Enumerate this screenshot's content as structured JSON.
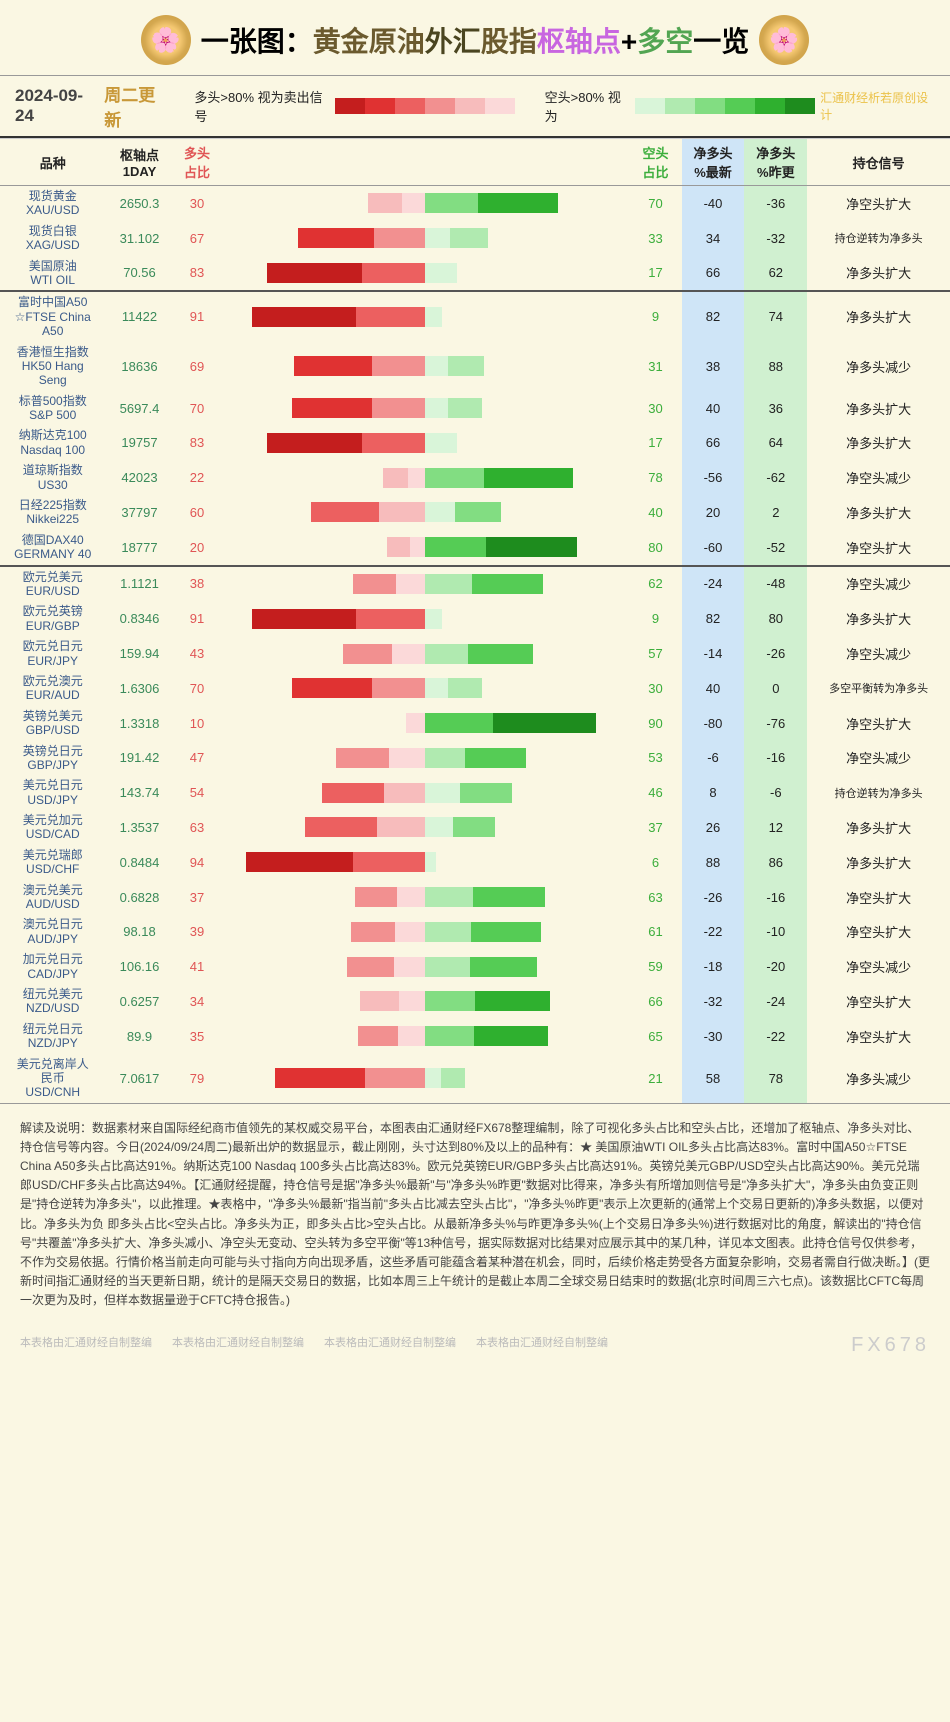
{
  "title_parts": [
    "一张图：",
    "黄金原油",
    "外汇",
    "股指",
    "枢轴点",
    "+",
    "多空",
    "一览"
  ],
  "date": "2024-09-24",
  "day": "周二更新",
  "legend_long": "多头>80% 视为卖出信号",
  "legend_short": "空头>80% 视为",
  "watermark_top": "汇通财经析若原创设计",
  "columns": {
    "name": "品种",
    "pivot": "枢轴点\n1DAY",
    "long": "多头\n占比",
    "short": "空头\n占比",
    "net1": "净多头\n%最新",
    "net2": "净多头\n%昨更",
    "sig": "持仓信号"
  },
  "red_gradient": [
    "#c41e1e",
    "#e03232",
    "#ec6060",
    "#f29090",
    "#f7bcbc",
    "#fbd9d9"
  ],
  "green_gradient": [
    "#d9f5d9",
    "#b0eab0",
    "#82dd82",
    "#55cc55",
    "#2fb02f",
    "#1e8c1e"
  ],
  "groups": [
    {
      "rows": [
        {
          "name": "现货黄金\nXAU/USD",
          "pivot": "2650.3",
          "long": 30,
          "short": 70,
          "net1": -40,
          "net2": -36,
          "sig": "净空头扩大"
        },
        {
          "name": "现货白银\nXAG/USD",
          "pivot": "31.102",
          "long": 67,
          "short": 33,
          "net1": 34,
          "net2": -32,
          "sig": "持仓逆转为净多头"
        },
        {
          "name": "美国原油\nWTI OIL",
          "pivot": "70.56",
          "long": 83,
          "short": 17,
          "net1": 66,
          "net2": 62,
          "sig": "净多头扩大"
        }
      ]
    },
    {
      "rows": [
        {
          "name": "富时中国A50\n☆FTSE China\nA50",
          "pivot": "11422",
          "long": 91,
          "short": 9,
          "net1": 82,
          "net2": 74,
          "sig": "净多头扩大"
        },
        {
          "name": "香港恒生指数\nHK50 Hang\nSeng",
          "pivot": "18636",
          "long": 69,
          "short": 31,
          "net1": 38,
          "net2": 88,
          "sig": "净多头减少"
        },
        {
          "name": "标普500指数\nS&P 500",
          "pivot": "5697.4",
          "long": 70,
          "short": 30,
          "net1": 40,
          "net2": 36,
          "sig": "净多头扩大"
        },
        {
          "name": "纳斯达克100\nNasdaq 100",
          "pivot": "19757",
          "long": 83,
          "short": 17,
          "net1": 66,
          "net2": 64,
          "sig": "净多头扩大"
        },
        {
          "name": "道琼斯指数\nUS30",
          "pivot": "42023",
          "long": 22,
          "short": 78,
          "net1": -56,
          "net2": -62,
          "sig": "净空头减少"
        },
        {
          "name": "日经225指数\nNikkei225",
          "pivot": "37797",
          "long": 60,
          "short": 40,
          "net1": 20,
          "net2": 2,
          "sig": "净多头扩大"
        },
        {
          "name": "德国DAX40\nGERMANY 40",
          "pivot": "18777",
          "long": 20,
          "short": 80,
          "net1": -60,
          "net2": -52,
          "sig": "净空头扩大"
        }
      ]
    },
    {
      "rows": [
        {
          "name": "欧元兑美元\nEUR/USD",
          "pivot": "1.1121",
          "long": 38,
          "short": 62,
          "net1": -24,
          "net2": -48,
          "sig": "净空头减少"
        },
        {
          "name": "欧元兑英镑\nEUR/GBP",
          "pivot": "0.8346",
          "long": 91,
          "short": 9,
          "net1": 82,
          "net2": 80,
          "sig": "净多头扩大"
        },
        {
          "name": "欧元兑日元\nEUR/JPY",
          "pivot": "159.94",
          "long": 43,
          "short": 57,
          "net1": -14,
          "net2": -26,
          "sig": "净空头减少"
        },
        {
          "name": "欧元兑澳元\nEUR/AUD",
          "pivot": "1.6306",
          "long": 70,
          "short": 30,
          "net1": 40,
          "net2": 0,
          "sig": "多空平衡转为净多头"
        },
        {
          "name": "英镑兑美元\nGBP/USD",
          "pivot": "1.3318",
          "long": 10,
          "short": 90,
          "net1": -80,
          "net2": -76,
          "sig": "净空头扩大"
        },
        {
          "name": "英镑兑日元\nGBP/JPY",
          "pivot": "191.42",
          "long": 47,
          "short": 53,
          "net1": -6,
          "net2": -16,
          "sig": "净空头减少"
        },
        {
          "name": "美元兑日元\nUSD/JPY",
          "pivot": "143.74",
          "long": 54,
          "short": 46,
          "net1": 8,
          "net2": -6,
          "sig": "持仓逆转为净多头"
        },
        {
          "name": "美元兑加元\nUSD/CAD",
          "pivot": "1.3537",
          "long": 63,
          "short": 37,
          "net1": 26,
          "net2": 12,
          "sig": "净多头扩大"
        },
        {
          "name": "美元兑瑞郎\nUSD/CHF",
          "pivot": "0.8484",
          "long": 94,
          "short": 6,
          "net1": 88,
          "net2": 86,
          "sig": "净多头扩大"
        },
        {
          "name": "澳元兑美元\nAUD/USD",
          "pivot": "0.6828",
          "long": 37,
          "short": 63,
          "net1": -26,
          "net2": -16,
          "sig": "净空头扩大"
        },
        {
          "name": "澳元兑日元\nAUD/JPY",
          "pivot": "98.18",
          "long": 39,
          "short": 61,
          "net1": -22,
          "net2": -10,
          "sig": "净空头扩大"
        },
        {
          "name": "加元兑日元\nCAD/JPY",
          "pivot": "106.16",
          "long": 41,
          "short": 59,
          "net1": -18,
          "net2": -20,
          "sig": "净空头减少"
        },
        {
          "name": "纽元兑美元\nNZD/USD",
          "pivot": "0.6257",
          "long": 34,
          "short": 66,
          "net1": -32,
          "net2": -24,
          "sig": "净空头扩大"
        },
        {
          "name": "纽元兑日元\nNZD/JPY",
          "pivot": "89.9",
          "long": 35,
          "short": 65,
          "net1": -30,
          "net2": -22,
          "sig": "净空头扩大"
        },
        {
          "name": "美元兑离岸人\n民币\nUSD/CNH",
          "pivot": "7.0617",
          "long": 79,
          "short": 21,
          "net1": 58,
          "net2": 78,
          "sig": "净多头减少"
        }
      ]
    }
  ],
  "footer": "解读及说明：数据素材来自国际经纪商市值领先的某权威交易平台，本图表由汇通财经FX678整理编制，除了可视化多头占比和空头占比，还增加了枢轴点、净多头对比、持仓信号等内容。今日(2024/09/24周二)最新出炉的数据显示，截止刚刚，头寸达到80%及以上的品种有：★ 美国原油WTI OIL多头占比高达83%。富时中国A50☆FTSE China A50多头占比高达91%。纳斯达克100 Nasdaq 100多头占比高达83%。欧元兑英镑EUR/GBP多头占比高达91%。英镑兑美元GBP/USD空头占比高达90%。美元兑瑞郎USD/CHF多头占比高达94%。【汇通财经提醒，持仓信号是据\"净多头%最新\"与\"净多头%昨更\"数据对比得来，净多头有所增加则信号是\"净多头扩大\"，净多头由负变正则是\"持仓逆转为净多头\"，以此推理。★表格中，\"净多头%最新\"指当前\"多头占比减去空头占比\"，\"净多头%昨更\"表示上次更新的(通常上个交易日更新的)净多头数据，以便对比。净多头为负 即多头占比<空头占比。净多头为正，即多头占比>空头占比。从最新净多头%与昨更净多头%(上个交易日净多头%)进行数据对比的角度，解读出的\"持仓信号\"共覆盖\"净多头扩大、净多头减小、净空头无变动、空头转为多空平衡\"等13种信号，据实际数据对比结果对应展示其中的某几种，详见本文图表。此持仓信号仅供参考，不作为交易依据。行情价格当前走向可能与头寸指向方向出现矛盾，这些矛盾可能蕴含着某种潜在机会，同时，后续价格走势受各方面复杂影响，交易者需自行做决断。】(更新时间指汇通财经的当天更新日期，统计的是隔天交易日的数据，比如本周三上午统计的是截止本周二全球交易日结束时的数据(北京时间周三六七点)。该数据比CFTC每周一次更为及时，但样本数据量逊于CFTC持仓报告。)",
  "footer_wm": "本表格由汇通财经自制整编",
  "fx_logo": "FX678"
}
